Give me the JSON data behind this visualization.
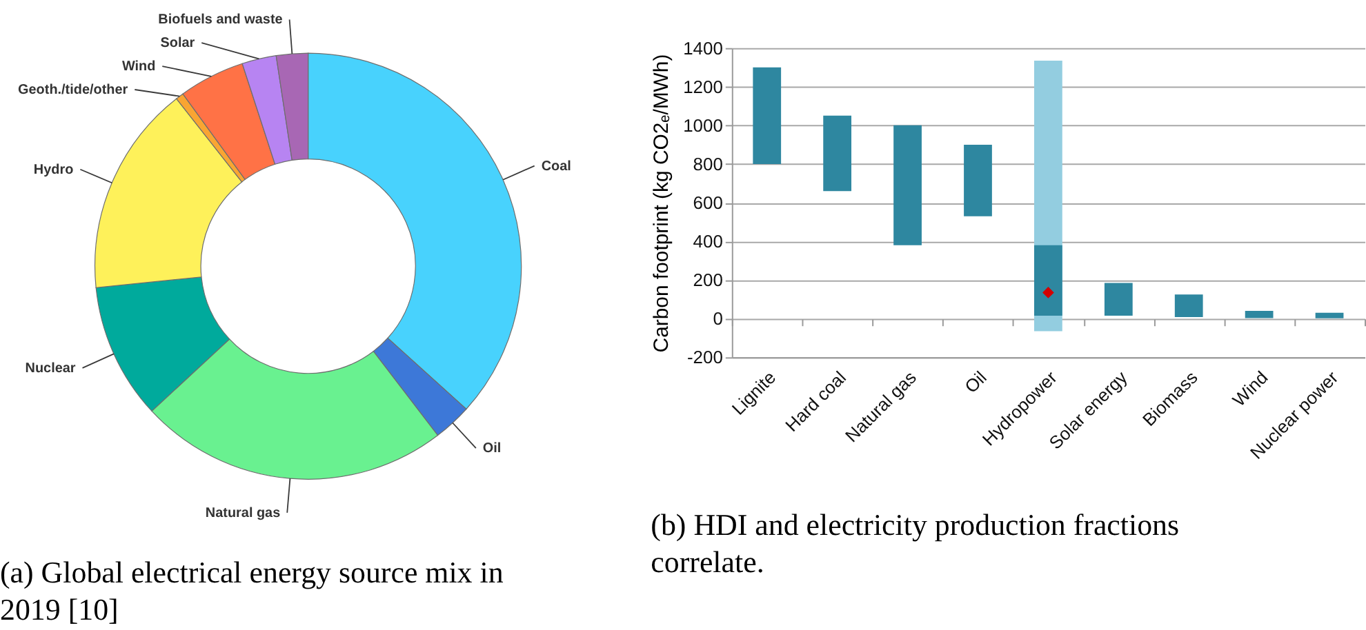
{
  "chart_data": [
    {
      "type": "donut",
      "categories": [
        "Coal",
        "Oil",
        "Natural gas",
        "Nuclear",
        "Hydro",
        "Geoth./tide/other",
        "Wind",
        "Solar",
        "Biofuels and waste"
      ],
      "values": [
        36.7,
        2.9,
        23.5,
        10.3,
        16.0,
        0.6,
        5.0,
        2.6,
        2.4
      ],
      "colors": [
        "#48d2fd",
        "#3d78d8",
        "#69f190",
        "#00aa9c",
        "#fef15a",
        "#f9a532",
        "#ff7246",
        "#b784f2",
        "#a867b4"
      ],
      "annotations": [
        "(a) Global electrical energy source mix in 2019 [10]"
      ]
    },
    {
      "type": "bar",
      "categories": [
        "Lignite",
        "Hard coal",
        "Natural gas",
        "Oil",
        "Hydropower",
        "Solar energy",
        "Biomass",
        "Wind",
        "Nuclear power"
      ],
      "series": [
        {
          "color": "#93cde0",
          "base": [
            null,
            null,
            null,
            null,
            -65,
            null,
            null,
            null,
            null
          ],
          "values": [
            null,
            null,
            null,
            null,
            1400,
            null,
            null,
            null,
            null
          ]
        },
        {
          "color": "#2e87a0",
          "base": [
            800,
            660,
            380,
            530,
            15,
            15,
            8,
            3,
            2
          ],
          "values": [
            500,
            390,
            620,
            370,
            365,
            170,
            117,
            37,
            28
          ]
        },
        {
          "type": "scatter",
          "marker": "diamond",
          "color": "#d40000",
          "x": [
            "Hydropower"
          ],
          "values": [
            135
          ]
        }
      ],
      "ylabel": "Carbon footprint (kg CO2ₑ/MWh)",
      "ylim": [
        -200,
        1400
      ],
      "yticks": [
        -200,
        0,
        200,
        400,
        600,
        800,
        1000,
        1200,
        1400
      ],
      "grid": "y",
      "annotations": [
        "(b) HDI and electricity production fractions correlate."
      ]
    }
  ]
}
